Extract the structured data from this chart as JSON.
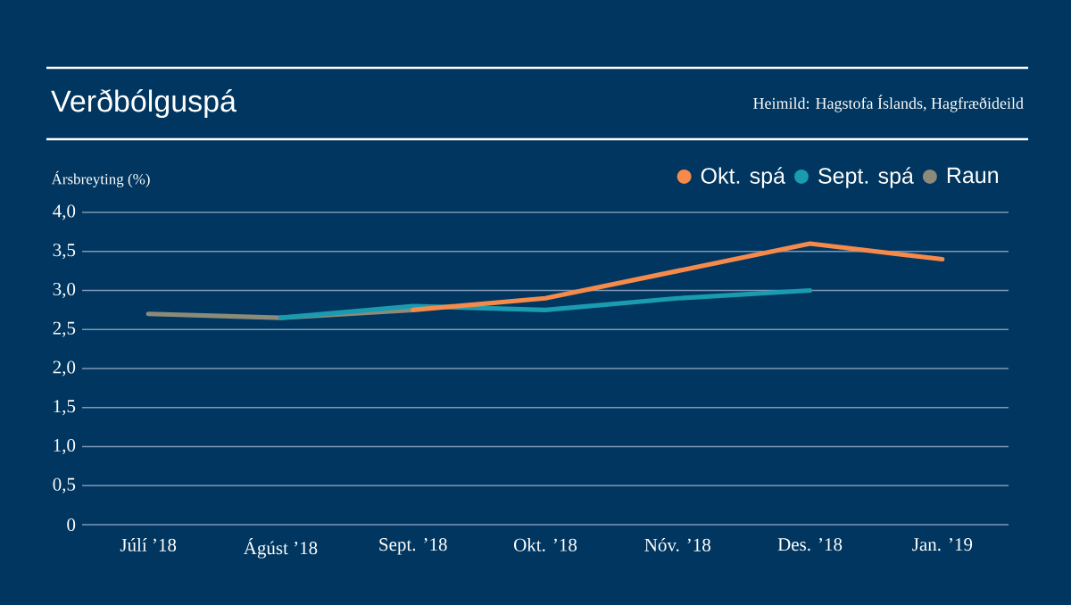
{
  "chart_data": {
    "type": "line",
    "title": "Verðbólguspá",
    "ylabel": "Ársbreyting (%)",
    "annotations": [
      "Heimild: Hagstofa Íslands, Hagfræðideild"
    ],
    "categories": [
      "Júlí ’18",
      "Ágúst ’18",
      "Sept. ’18",
      "Okt. ’18",
      "Nóv. ’18",
      "Des. ’18",
      "Jan. ’19"
    ],
    "series": [
      {
        "name": "Okt. spá",
        "color": "#f58a4b",
        "values": [
          null,
          null,
          2.75,
          2.9,
          3.25,
          3.6,
          3.4
        ]
      },
      {
        "name": "Sept. spá",
        "color": "#1a9bb0",
        "values": [
          null,
          2.65,
          2.8,
          2.75,
          2.9,
          3.0,
          null
        ]
      },
      {
        "name": "Raun",
        "color": "#8c8a78",
        "values": [
          2.7,
          2.65,
          2.75,
          null,
          null,
          null,
          null
        ]
      }
    ],
    "ylim": [
      0,
      4
    ],
    "yticks": [
      0,
      {
        "value": 0.5,
        "label": "0,5"
      },
      {
        "value": 1,
        "label": "1,0"
      },
      {
        "value": 1.5,
        "label": "1,5"
      },
      {
        "value": 2,
        "label": "2,0"
      },
      {
        "value": 2.5,
        "label": "2,5"
      },
      {
        "value": 3,
        "label": "3,0"
      },
      {
        "value": 3.5,
        "label": "3,5"
      },
      {
        "value": 4,
        "label": "4,0"
      }
    ],
    "grid": "y",
    "legend": "top right",
    "marker": "none",
    "line_style": "solid"
  }
}
